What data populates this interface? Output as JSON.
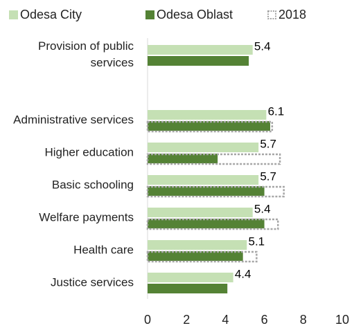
{
  "chart_data": {
    "type": "hbar",
    "categories": [
      "Provision of public services",
      null,
      "Administrative services",
      "Higher education",
      "Basic schooling",
      "Welfare payments",
      "Health care",
      "Justice services"
    ],
    "series": [
      {
        "name": "Odesa City",
        "color": "#c5e0b4",
        "values": [
          5.4,
          null,
          6.1,
          5.7,
          5.7,
          5.4,
          5.1,
          4.4
        ]
      },
      {
        "name": "Odesa Oblast",
        "color": "#548235",
        "values": [
          5.2,
          null,
          6.3,
          3.6,
          6.0,
          6.0,
          4.9,
          4.1
        ]
      },
      {
        "name": "2018",
        "color": "#a6a6a6",
        "style": "dotted",
        "values": [
          null,
          null,
          6.4,
          6.8,
          7.0,
          6.7,
          5.6,
          null
        ]
      }
    ],
    "xlim": [
      0,
      10
    ],
    "xticks": [
      0,
      2,
      4,
      6,
      8,
      10
    ]
  }
}
